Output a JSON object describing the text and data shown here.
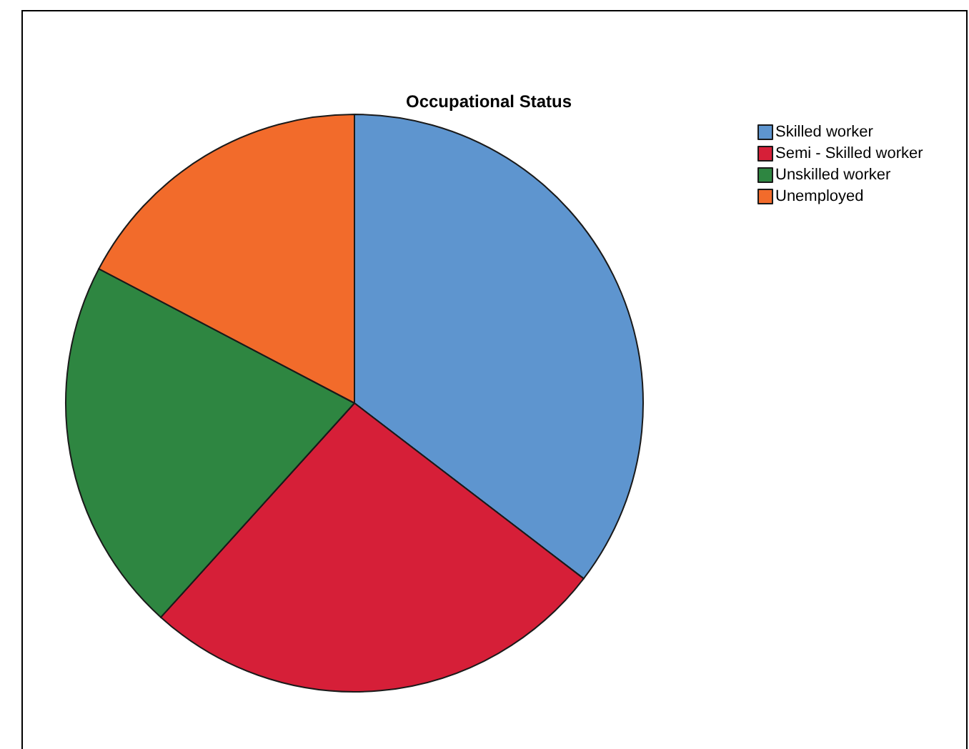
{
  "chart_data": {
    "type": "pie",
    "title": "Occupational Status",
    "categories": [
      "Skilled worker",
      "Semi - Skilled worker",
      "Unskilled worker",
      "Unemployed"
    ],
    "values": [
      35.4,
      26.3,
      21.0,
      17.3
    ],
    "colors": [
      "#5e95cf",
      "#d61f38",
      "#2e8641",
      "#f26b2b"
    ],
    "legend": "top right"
  }
}
